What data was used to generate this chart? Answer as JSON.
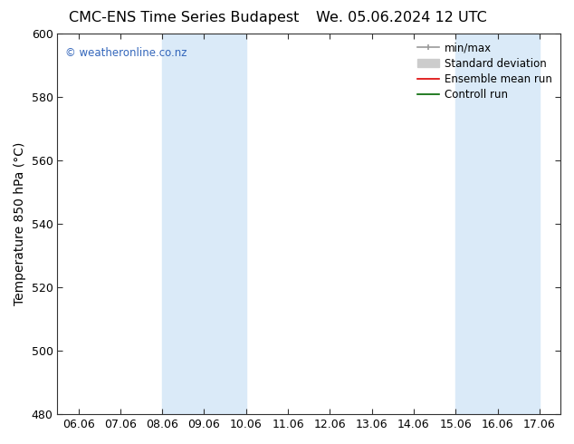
{
  "title_left": "CMC-ENS Time Series Budapest",
  "title_right": "We. 05.06.2024 12 UTC",
  "ylabel": "Temperature 850 hPa (°C)",
  "ylim": [
    480,
    600
  ],
  "yticks": [
    480,
    500,
    520,
    540,
    560,
    580,
    600
  ],
  "xtick_labels": [
    "06.06",
    "07.06",
    "08.06",
    "09.06",
    "10.06",
    "11.06",
    "12.06",
    "13.06",
    "14.06",
    "15.06",
    "16.06",
    "17.06"
  ],
  "shaded_ranges": [
    [
      2,
      4
    ],
    [
      9,
      11
    ]
  ],
  "shaded_color": "#daeaf8",
  "watermark_text": "© weatheronline.co.nz",
  "watermark_color": "#3366bb",
  "background_color": "#ffffff",
  "plot_bg_color": "#ffffff",
  "legend_entries": [
    {
      "label": "min/max",
      "color": "#999999",
      "lw": 1.2
    },
    {
      "label": "Standard deviation",
      "color": "#cccccc",
      "lw": 5
    },
    {
      "label": "Ensemble mean run",
      "color": "#dd0000",
      "lw": 1.2
    },
    {
      "label": "Controll run",
      "color": "#006600",
      "lw": 1.2
    }
  ],
  "title_fontsize": 11.5,
  "axis_label_fontsize": 10,
  "tick_fontsize": 9,
  "legend_fontsize": 8.5
}
